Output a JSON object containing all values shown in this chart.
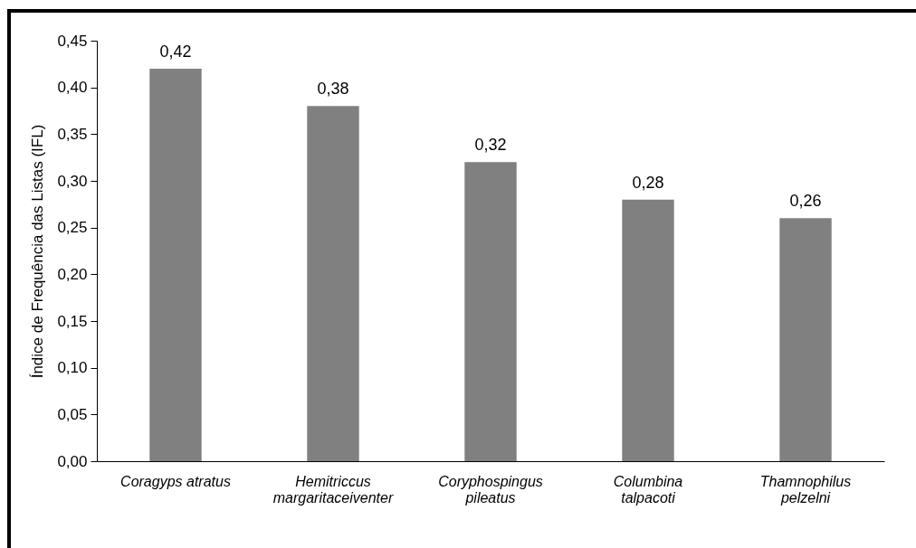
{
  "chart_data": {
    "type": "bar",
    "ylabel": "Índice de Frequência das Listas (IFL)",
    "categories": [
      "Coragyps atratus",
      "Hemitriccus margaritaceiventer",
      "Coryphospingus pileatus",
      "Columbina talpacoti",
      "Thamnophilus pelzelni"
    ],
    "values": [
      0.42,
      0.38,
      0.32,
      0.28,
      0.26
    ],
    "color": "#808080",
    "ylim": [
      0,
      0.45
    ],
    "yticks": [
      {
        "value": 0,
        "label": "0,00"
      },
      {
        "value": 0.05,
        "label": "0,05"
      },
      {
        "value": 0.1,
        "label": "0,10"
      },
      {
        "value": 0.15,
        "label": "0,15"
      },
      {
        "value": 0.2,
        "label": "0,20"
      },
      {
        "value": 0.25,
        "label": "0,25"
      },
      {
        "value": 0.3,
        "label": "0,30"
      },
      {
        "value": 0.35,
        "label": "0,35"
      },
      {
        "value": 0.4,
        "label": "0,40"
      },
      {
        "value": 0.45,
        "label": "0,45"
      }
    ],
    "value_labels": [
      "0,42",
      "0,38",
      "0,32",
      "0,28",
      "0,26"
    ],
    "grid": false
  }
}
